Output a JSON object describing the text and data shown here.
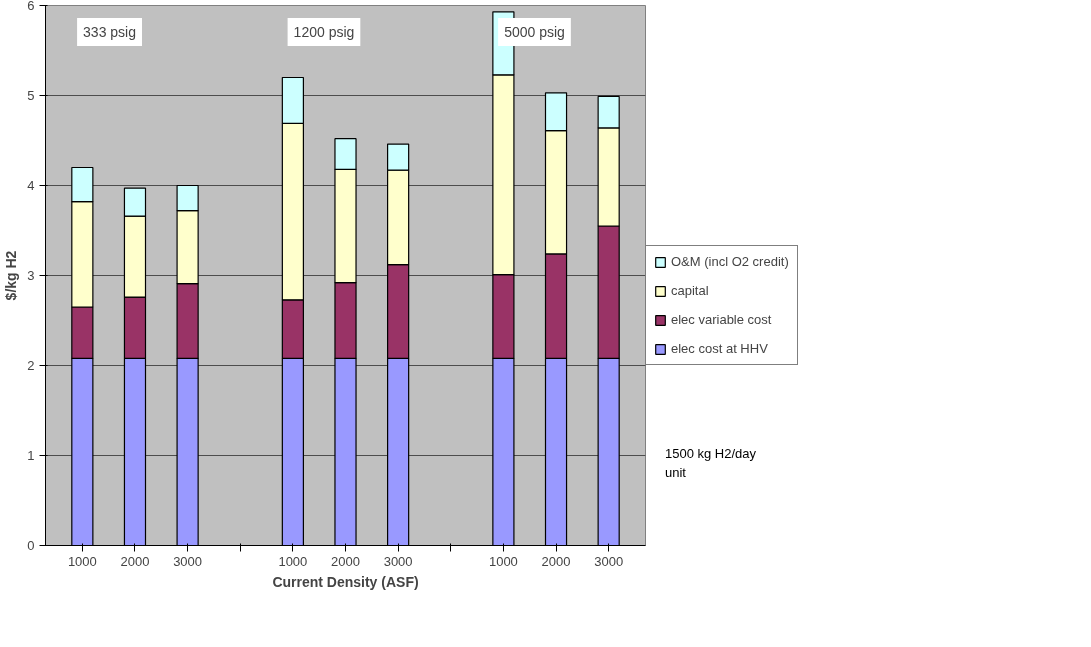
{
  "chart_data": {
    "type": "bar",
    "stacked": true,
    "ylabel": "$/kg H2",
    "xlabel": "Current Density (ASF)",
    "categories": [
      "1000",
      "2000",
      "3000",
      null,
      "1000",
      "2000",
      "3000",
      null,
      "1000",
      "2000",
      "3000"
    ],
    "series": [
      {
        "name": "elec cost at HHV",
        "color": "#9999ff",
        "values": [
          2.08,
          2.08,
          2.08,
          null,
          2.08,
          2.08,
          2.08,
          null,
          2.08,
          2.08,
          2.08
        ]
      },
      {
        "name": "elec variable cost",
        "color": "#993366",
        "values": [
          0.57,
          0.68,
          0.83,
          null,
          0.65,
          0.84,
          1.04,
          null,
          0.93,
          1.16,
          1.47
        ]
      },
      {
        "name": "capital",
        "color": "#ffffcc",
        "values": [
          1.17,
          0.9,
          0.81,
          null,
          1.96,
          1.26,
          1.05,
          null,
          2.22,
          1.37,
          1.09
        ]
      },
      {
        "name": "O&M (incl O2 credit)",
        "color": "#ccffff",
        "values": [
          0.38,
          0.31,
          0.28,
          null,
          0.51,
          0.34,
          0.29,
          null,
          0.7,
          0.42,
          0.35
        ]
      }
    ],
    "ylim": [
      0,
      6
    ],
    "yticks": [
      0,
      1,
      2,
      3,
      4,
      5,
      6
    ],
    "grid": "y",
    "legend": "right",
    "annotations": [
      "333 psig",
      "1200 psig",
      "5000 psig",
      "1500 kg H2/day unit"
    ]
  }
}
